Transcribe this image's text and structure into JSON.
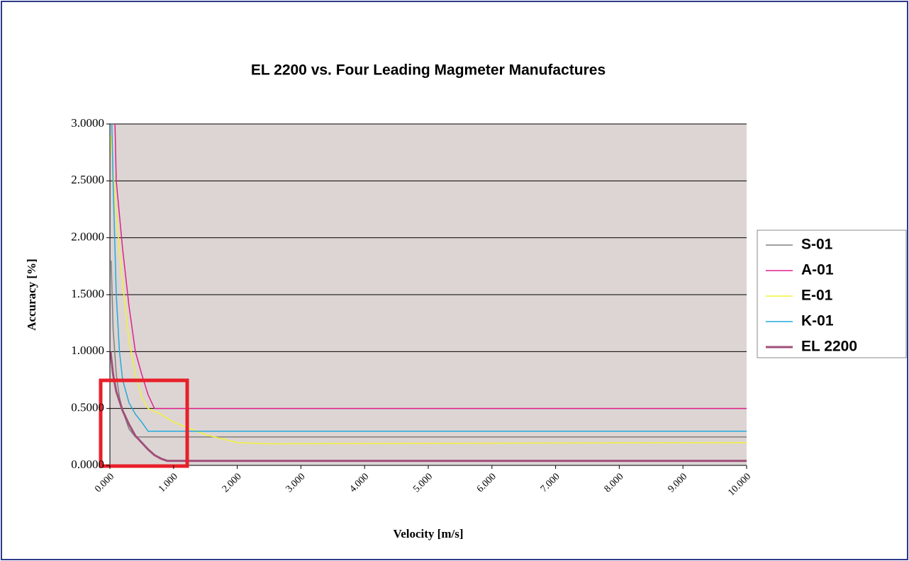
{
  "chart_data": {
    "type": "line",
    "title": "EL 2200 vs. Four Leading Magmeter Manufactures",
    "x_label": "Velocity [m/s]",
    "y_label": "Accuracy [%]",
    "xlim": [
      0,
      10
    ],
    "ylim": [
      0,
      3
    ],
    "xticks": [
      {
        "value": 0,
        "label": "0.000"
      },
      {
        "value": 1,
        "label": "1.000"
      },
      {
        "value": 2,
        "label": "2.000"
      },
      {
        "value": 3,
        "label": "3.000"
      },
      {
        "value": 4,
        "label": "4.000"
      },
      {
        "value": 5,
        "label": "5.000"
      },
      {
        "value": 6,
        "label": "6.000"
      },
      {
        "value": 7,
        "label": "7.000"
      },
      {
        "value": 8,
        "label": "8.000"
      },
      {
        "value": 9,
        "label": "9.000"
      },
      {
        "value": 10,
        "label": "10.000"
      }
    ],
    "yticks": [
      {
        "value": 0,
        "label": "0.0000"
      },
      {
        "value": 0.5,
        "label": "0.5000"
      },
      {
        "value": 1,
        "label": "1.0000"
      },
      {
        "value": 1.5,
        "label": "1.5000"
      },
      {
        "value": 2,
        "label": "2.0000"
      },
      {
        "value": 2.5,
        "label": "2.5000"
      },
      {
        "value": 3,
        "label": "3.0000"
      }
    ],
    "grid": true,
    "legend": "right",
    "series": [
      {
        "name": "S-01",
        "color": "#808080",
        "width": 1.5,
        "x": [
          0.02,
          0.05,
          0.1,
          0.15,
          0.2,
          0.3,
          0.4,
          10
        ],
        "values": [
          1.8,
          1.2,
          0.8,
          0.6,
          0.48,
          0.32,
          0.25,
          0.25
        ]
      },
      {
        "name": "A-01",
        "color": "#e0218a",
        "width": 1.5,
        "x": [
          0.08,
          0.1,
          0.15,
          0.2,
          0.3,
          0.4,
          0.5,
          0.6,
          0.7,
          10
        ],
        "values": [
          3.0,
          2.5,
          2.2,
          1.9,
          1.4,
          1.0,
          0.8,
          0.62,
          0.5,
          0.5
        ]
      },
      {
        "name": "E-01",
        "color": "#f2f23a",
        "width": 1.5,
        "x": [
          0.01,
          0.05,
          0.1,
          0.2,
          0.3,
          0.4,
          0.5,
          0.6,
          0.8,
          1.0,
          1.5,
          2.0,
          2.5,
          10
        ],
        "values": [
          2.9,
          2.6,
          2.2,
          1.6,
          1.1,
          0.8,
          0.6,
          0.5,
          0.45,
          0.38,
          0.27,
          0.2,
          0.19,
          0.2
        ]
      },
      {
        "name": "K-01",
        "color": "#22aadd",
        "width": 1.5,
        "x": [
          0.03,
          0.05,
          0.1,
          0.15,
          0.2,
          0.3,
          0.4,
          0.5,
          0.6,
          10
        ],
        "values": [
          3.0,
          2.5,
          1.5,
          1.0,
          0.75,
          0.55,
          0.45,
          0.38,
          0.3,
          0.3
        ]
      },
      {
        "name": "EL 2200",
        "color": "#a0507a",
        "width": 3,
        "x": [
          0.01,
          0.05,
          0.1,
          0.2,
          0.3,
          0.4,
          0.5,
          0.6,
          0.7,
          0.8,
          0.9,
          10
        ],
        "values": [
          1.0,
          0.8,
          0.65,
          0.48,
          0.36,
          0.26,
          0.2,
          0.14,
          0.09,
          0.06,
          0.04,
          0.04
        ]
      }
    ]
  }
}
